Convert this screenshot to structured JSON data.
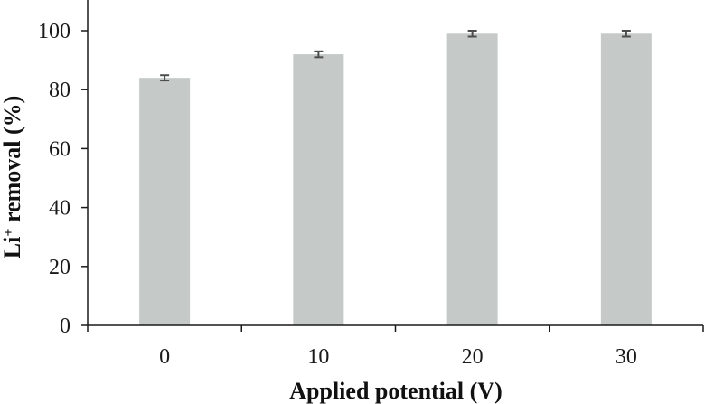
{
  "chart_data": {
    "type": "bar",
    "categories": [
      "0",
      "10",
      "20",
      "30"
    ],
    "values": [
      84,
      92,
      99,
      99
    ],
    "errors": [
      0.9,
      1.0,
      1.0,
      1.0
    ],
    "xlabel": "Applied potential  (V)",
    "ylabel": {
      "prefix": "Li",
      "superscript": "+",
      "suffix": " removal (%)"
    },
    "ylim": [
      0,
      100
    ],
    "yticks": [
      0,
      20,
      40,
      60,
      80,
      100
    ],
    "grid": false,
    "legend": "none",
    "colors": {
      "bar": "#c5cac8",
      "axis": "#1a1a1a",
      "errorbar": "#4d4d4d"
    }
  }
}
